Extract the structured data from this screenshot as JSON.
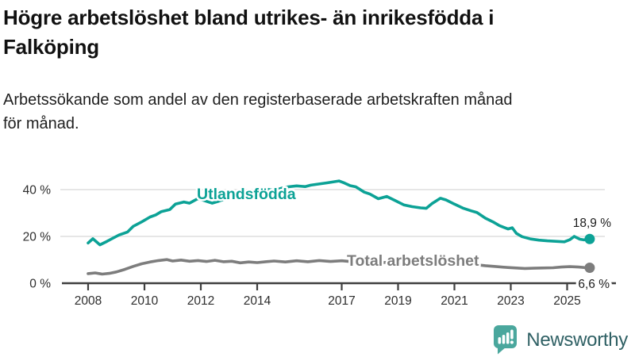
{
  "header": {
    "title_lines": [
      "Högre arbetslöshet bland utrikes- än inrikesfödda i",
      "Falköping"
    ],
    "subtitle_lines": [
      "Arbetssökande som andel av den registerbaserade arbetskraften månad",
      "för månad."
    ]
  },
  "chart_data": {
    "type": "line",
    "title": "Högre arbetslöshet bland utrikes- än inrikesfödda i Falköping",
    "subtitle": "Arbetssökande som andel av den registerbaserade arbetskraften månad för månad.",
    "unit": "%",
    "grid": "horizontal-only",
    "legend_position": "inline-labels-on-lines",
    "xlim": [
      2007.3,
      2026.5
    ],
    "ylim": [
      0,
      46
    ],
    "x_ticks": [
      2008,
      2010,
      2012,
      2014,
      2017,
      2019,
      2021,
      2023,
      2025
    ],
    "y_ticks": [
      {
        "value": 0,
        "label": "0 %"
      },
      {
        "value": 20,
        "label": "20 %"
      },
      {
        "value": 40,
        "label": "40 %"
      }
    ],
    "colors": {
      "foreign_born_line": "#0CA296",
      "total_line": "#7D7D7D",
      "axis": "#3F3F3F",
      "gridline": "#D8D8D8",
      "tick_label": "#2E2E2E",
      "value_label": "#1C1C1C"
    },
    "series": [
      {
        "name": "Utlandsfödda",
        "color": "#0CA296",
        "end_label": "18,9 %",
        "end_value": 18.9,
        "points": [
          [
            2008.0,
            17.2
          ],
          [
            2008.17,
            19.0
          ],
          [
            2008.42,
            16.4
          ],
          [
            2008.67,
            17.9
          ],
          [
            2008.9,
            19.4
          ],
          [
            2009.1,
            20.6
          ],
          [
            2009.4,
            21.9
          ],
          [
            2009.6,
            24.3
          ],
          [
            2009.9,
            26.2
          ],
          [
            2010.2,
            28.3
          ],
          [
            2010.4,
            29.2
          ],
          [
            2010.6,
            30.6
          ],
          [
            2010.9,
            31.5
          ],
          [
            2011.1,
            33.8
          ],
          [
            2011.4,
            34.7
          ],
          [
            2011.6,
            34.2
          ],
          [
            2011.9,
            36.2
          ],
          [
            2012.1,
            35.4
          ],
          [
            2012.4,
            34.2
          ],
          [
            2012.6,
            34.9
          ],
          [
            2012.9,
            36.2
          ],
          [
            2013.2,
            36.4
          ],
          [
            2013.4,
            37.6
          ],
          [
            2013.7,
            37.9
          ],
          [
            2013.9,
            38.4
          ],
          [
            2014.1,
            39.3
          ],
          [
            2014.4,
            40.1
          ],
          [
            2014.6,
            39.6
          ],
          [
            2014.9,
            40.7
          ],
          [
            2015.1,
            41.2
          ],
          [
            2015.4,
            41.6
          ],
          [
            2015.7,
            41.3
          ],
          [
            2015.9,
            41.9
          ],
          [
            2016.2,
            42.4
          ],
          [
            2016.5,
            42.9
          ],
          [
            2016.9,
            43.7
          ],
          [
            2017.1,
            42.8
          ],
          [
            2017.3,
            41.7
          ],
          [
            2017.5,
            41.2
          ],
          [
            2017.8,
            38.9
          ],
          [
            2018.0,
            38.1
          ],
          [
            2018.3,
            36.1
          ],
          [
            2018.6,
            37.1
          ],
          [
            2018.9,
            35.3
          ],
          [
            2019.2,
            33.5
          ],
          [
            2019.5,
            32.7
          ],
          [
            2019.8,
            32.2
          ],
          [
            2020.0,
            32.0
          ],
          [
            2020.2,
            34.0
          ],
          [
            2020.5,
            36.3
          ],
          [
            2020.7,
            35.6
          ],
          [
            2021.0,
            33.8
          ],
          [
            2021.3,
            32.1
          ],
          [
            2021.6,
            30.9
          ],
          [
            2021.8,
            30.2
          ],
          [
            2022.1,
            27.8
          ],
          [
            2022.4,
            26.0
          ],
          [
            2022.6,
            24.6
          ],
          [
            2022.9,
            23.2
          ],
          [
            2023.05,
            23.7
          ],
          [
            2023.2,
            21.3
          ],
          [
            2023.4,
            19.9
          ],
          [
            2023.7,
            18.9
          ],
          [
            2024.0,
            18.4
          ],
          [
            2024.3,
            18.1
          ],
          [
            2024.6,
            17.9
          ],
          [
            2024.9,
            17.7
          ],
          [
            2025.1,
            18.6
          ],
          [
            2025.25,
            20.0
          ],
          [
            2025.45,
            18.8
          ],
          [
            2025.6,
            18.5
          ],
          [
            2025.8,
            18.9
          ]
        ]
      },
      {
        "name": "Total arbetslöshet",
        "color": "#7D7D7D",
        "end_label": "6,6 %",
        "end_value": 6.6,
        "points": [
          [
            2008.0,
            4.1
          ],
          [
            2008.25,
            4.4
          ],
          [
            2008.5,
            3.9
          ],
          [
            2008.75,
            4.2
          ],
          [
            2009.0,
            4.8
          ],
          [
            2009.3,
            5.9
          ],
          [
            2009.6,
            7.2
          ],
          [
            2009.9,
            8.3
          ],
          [
            2010.2,
            9.1
          ],
          [
            2010.5,
            9.7
          ],
          [
            2010.8,
            10.1
          ],
          [
            2011.0,
            9.5
          ],
          [
            2011.3,
            9.9
          ],
          [
            2011.6,
            9.4
          ],
          [
            2011.9,
            9.7
          ],
          [
            2012.2,
            9.3
          ],
          [
            2012.5,
            9.8
          ],
          [
            2012.8,
            9.2
          ],
          [
            2013.1,
            9.4
          ],
          [
            2013.4,
            8.7
          ],
          [
            2013.7,
            9.1
          ],
          [
            2014.0,
            8.8
          ],
          [
            2014.3,
            9.2
          ],
          [
            2014.6,
            9.5
          ],
          [
            2015.0,
            9.1
          ],
          [
            2015.4,
            9.6
          ],
          [
            2015.8,
            9.2
          ],
          [
            2016.2,
            9.7
          ],
          [
            2016.6,
            9.3
          ],
          [
            2017.0,
            9.6
          ],
          [
            2017.4,
            9.2
          ],
          [
            2017.8,
            8.9
          ],
          [
            2018.2,
            8.6
          ],
          [
            2018.6,
            8.9
          ],
          [
            2019.0,
            8.4
          ],
          [
            2019.4,
            8.2
          ],
          [
            2019.8,
            8.5
          ],
          [
            2020.2,
            9.3
          ],
          [
            2020.5,
            9.7
          ],
          [
            2020.9,
            9.1
          ],
          [
            2021.3,
            8.6
          ],
          [
            2021.7,
            8.0
          ],
          [
            2022.1,
            7.5
          ],
          [
            2022.5,
            7.1
          ],
          [
            2022.9,
            6.7
          ],
          [
            2023.2,
            6.5
          ],
          [
            2023.5,
            6.3
          ],
          [
            2023.8,
            6.4
          ],
          [
            2024.1,
            6.5
          ],
          [
            2024.5,
            6.6
          ],
          [
            2024.8,
            6.9
          ],
          [
            2025.1,
            7.1
          ],
          [
            2025.4,
            6.9
          ],
          [
            2025.6,
            6.7
          ],
          [
            2025.8,
            6.6
          ]
        ]
      }
    ]
  },
  "footer": {
    "brand": "Newsworthy",
    "brand_color": "#2F6064",
    "icon": "newsworthy-chart-pin-icon",
    "icon_color": "#4AA79D",
    "icon_bar_color": "#FFFFFF"
  }
}
